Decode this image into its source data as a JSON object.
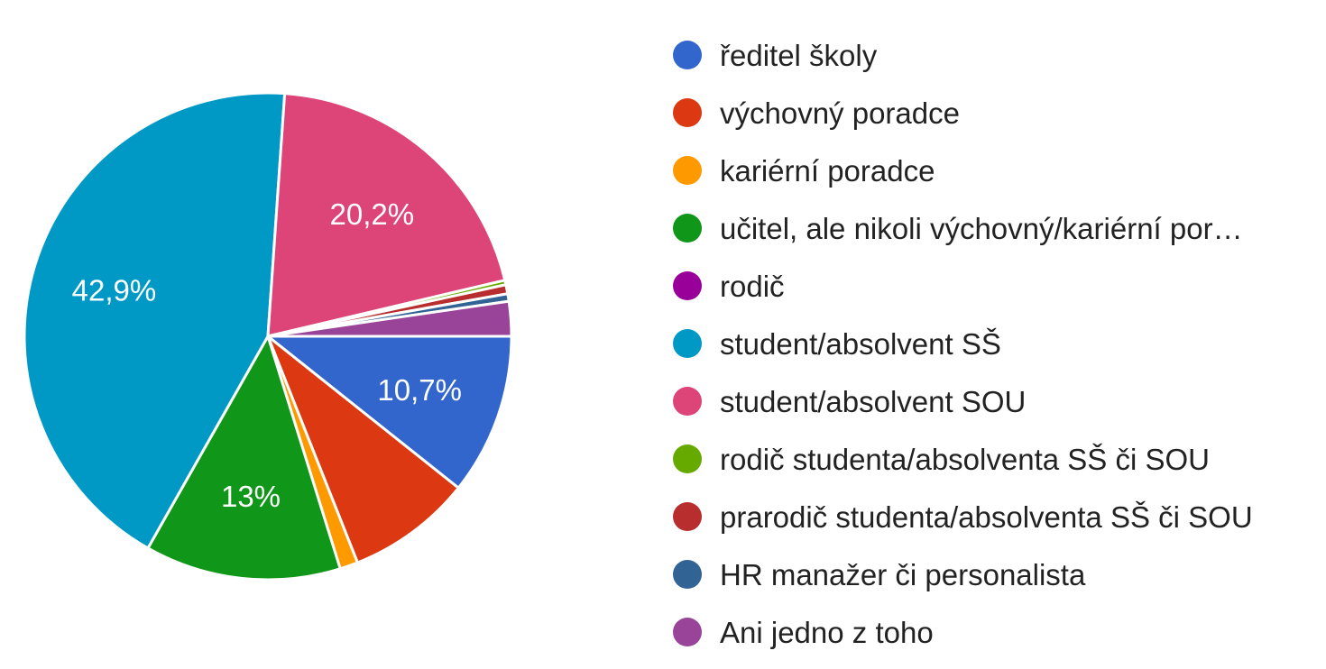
{
  "chart_data": {
    "type": "pie",
    "title": "",
    "legend_position": "right",
    "slices": [
      {
        "label": "ředitel školy",
        "value": 10.7,
        "color": "#3366CC",
        "display_label": "10,7%"
      },
      {
        "label": "výchovný poradce",
        "value": 8.3,
        "color": "#DC3912",
        "display_label": ""
      },
      {
        "label": "kariérní poradce",
        "value": 1.2,
        "color": "#FF9900",
        "display_label": ""
      },
      {
        "label": "učitel, ale nikoli výchovný/kariérní por…",
        "value": 13.0,
        "color": "#109618",
        "display_label": "13%"
      },
      {
        "label": "rodič",
        "value": 0.0,
        "color": "#990099",
        "display_label": ""
      },
      {
        "label": "student/absolvent SŠ",
        "value": 42.9,
        "color": "#0099C6",
        "display_label": "42,9%"
      },
      {
        "label": "student/absolvent SOU",
        "value": 20.2,
        "color": "#DD4477",
        "display_label": "20,2%"
      },
      {
        "label": "rodič studenta/absolventa SŠ či SOU",
        "value": 0.3,
        "color": "#66AA00",
        "display_label": ""
      },
      {
        "label": "prarodič studenta/absolventa SŠ či SOU",
        "value": 0.6,
        "color": "#B82E2E",
        "display_label": ""
      },
      {
        "label": "HR manažer či personalista",
        "value": 0.5,
        "color": "#316395",
        "display_label": ""
      },
      {
        "label": "Ani jedno z toho",
        "value": 2.3,
        "color": "#994499",
        "display_label": ""
      }
    ]
  }
}
